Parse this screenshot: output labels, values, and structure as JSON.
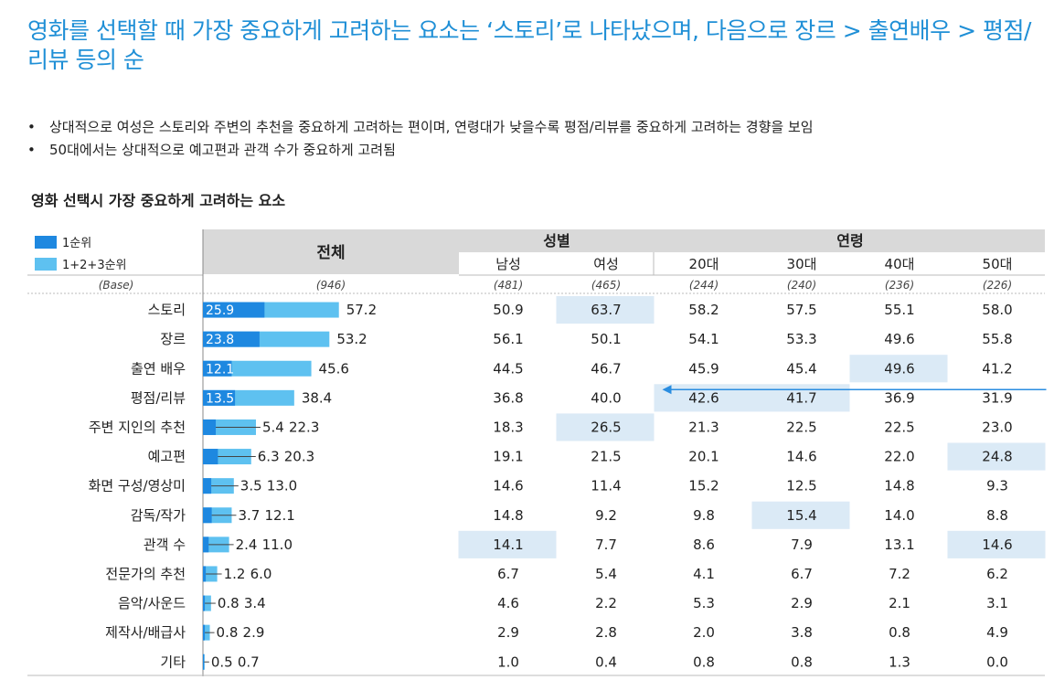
{
  "title": "영화를 선택할 때 가장 중요하게 고려하는 요소는 ‘스토리’로 나타났으며, 다음으로 장르 > 출연배우 > 평점/리뷰 등의 순",
  "bullets": [
    "상대적으로 여성은 스토리와 주변의 추천을 중요하게 고려하는 편이며, 연령대가 낮을수록 평점/리뷰를 중요하게 고려하는 경향을 보임",
    "50대에서는 상대적으로 예고편과 관객 수가 중요하게 고려됨"
  ],
  "bullet_marker": "•",
  "chart_data": {
    "type": "bar",
    "title": "영화 선택시 가장 중요하게 고려하는 요소",
    "legend": [
      "1순위",
      "1+2+3순위"
    ],
    "colors": {
      "first": "#1e88e0",
      "cumulative": "#5ec1f0",
      "highlight": "#dbeaf6",
      "arrow": "#2a8de0",
      "header": "#d9d9d9"
    },
    "overall_header": "전체",
    "group_headers": [
      "성별",
      "연령"
    ],
    "columns": [
      "남성",
      "여성",
      "20대",
      "30대",
      "40대",
      "50대"
    ],
    "base_label": "(Base)",
    "base_overall": "(946)",
    "base_columns": [
      "(481)",
      "(465)",
      "(244)",
      "(240)",
      "(236)",
      "(226)"
    ],
    "categories": [
      "스토리",
      "장르",
      "출연 배우",
      "평점/리뷰",
      "주변 지인의 추천",
      "예고편",
      "화면 구성/영상미",
      "감독/작가",
      "관객 수",
      "전문가의 추천",
      "음악/사운드",
      "제작사/배급사",
      "기타"
    ],
    "first_rank": [
      25.9,
      23.8,
      12.1,
      13.5,
      5.4,
      6.3,
      3.5,
      3.7,
      2.4,
      1.2,
      0.8,
      0.8,
      0.5
    ],
    "top3": [
      57.2,
      53.2,
      45.6,
      38.4,
      22.3,
      20.3,
      13.0,
      12.1,
      11.0,
      6.0,
      3.4,
      2.9,
      0.7
    ],
    "first_rank_labels": [
      "25.9",
      "23.8",
      "12.1",
      "13.5",
      "5.4",
      "6.3",
      "3.5",
      "3.7",
      "2.4",
      "1.2",
      "0.8",
      "0.8",
      "0.5"
    ],
    "top3_labels": [
      "57.2",
      "53.2",
      "45.6",
      "38.4",
      "22.3",
      "20.3",
      "13.0",
      "12.1",
      "11.0",
      "6.0",
      "3.4",
      "2.9",
      "0.7"
    ],
    "table": [
      [
        "50.9",
        "63.7",
        "58.2",
        "57.5",
        "55.1",
        "58.0"
      ],
      [
        "56.1",
        "50.1",
        "54.1",
        "53.3",
        "49.6",
        "55.8"
      ],
      [
        "44.5",
        "46.7",
        "45.9",
        "45.4",
        "49.6",
        "41.2"
      ],
      [
        "36.8",
        "40.0",
        "42.6",
        "41.7",
        "36.9",
        "31.9"
      ],
      [
        "18.3",
        "26.5",
        "21.3",
        "22.5",
        "22.5",
        "23.0"
      ],
      [
        "19.1",
        "21.5",
        "20.1",
        "14.6",
        "22.0",
        "24.8"
      ],
      [
        "14.6",
        "11.4",
        "15.2",
        "12.5",
        "14.8",
        "9.3"
      ],
      [
        "14.8",
        "9.2",
        "9.8",
        "15.4",
        "14.0",
        "8.8"
      ],
      [
        "14.1",
        "7.7",
        "8.6",
        "7.9",
        "13.1",
        "14.6"
      ],
      [
        "6.7",
        "5.4",
        "4.1",
        "6.7",
        "7.2",
        "6.2"
      ],
      [
        "4.6",
        "2.2",
        "5.3",
        "2.9",
        "2.1",
        "3.1"
      ],
      [
        "2.9",
        "2.8",
        "2.0",
        "3.8",
        "0.8",
        "4.9"
      ],
      [
        "1.0",
        "0.4",
        "0.8",
        "0.8",
        "1.3",
        "0.0"
      ]
    ],
    "highlights": [
      [
        0,
        1
      ],
      [
        2,
        4
      ],
      [
        3,
        2
      ],
      [
        3,
        3
      ],
      [
        4,
        1
      ],
      [
        5,
        5
      ],
      [
        7,
        3
      ],
      [
        8,
        0
      ],
      [
        8,
        5
      ]
    ],
    "arrow": {
      "row": 3,
      "from_col": 5,
      "to_col": 2
    }
  }
}
